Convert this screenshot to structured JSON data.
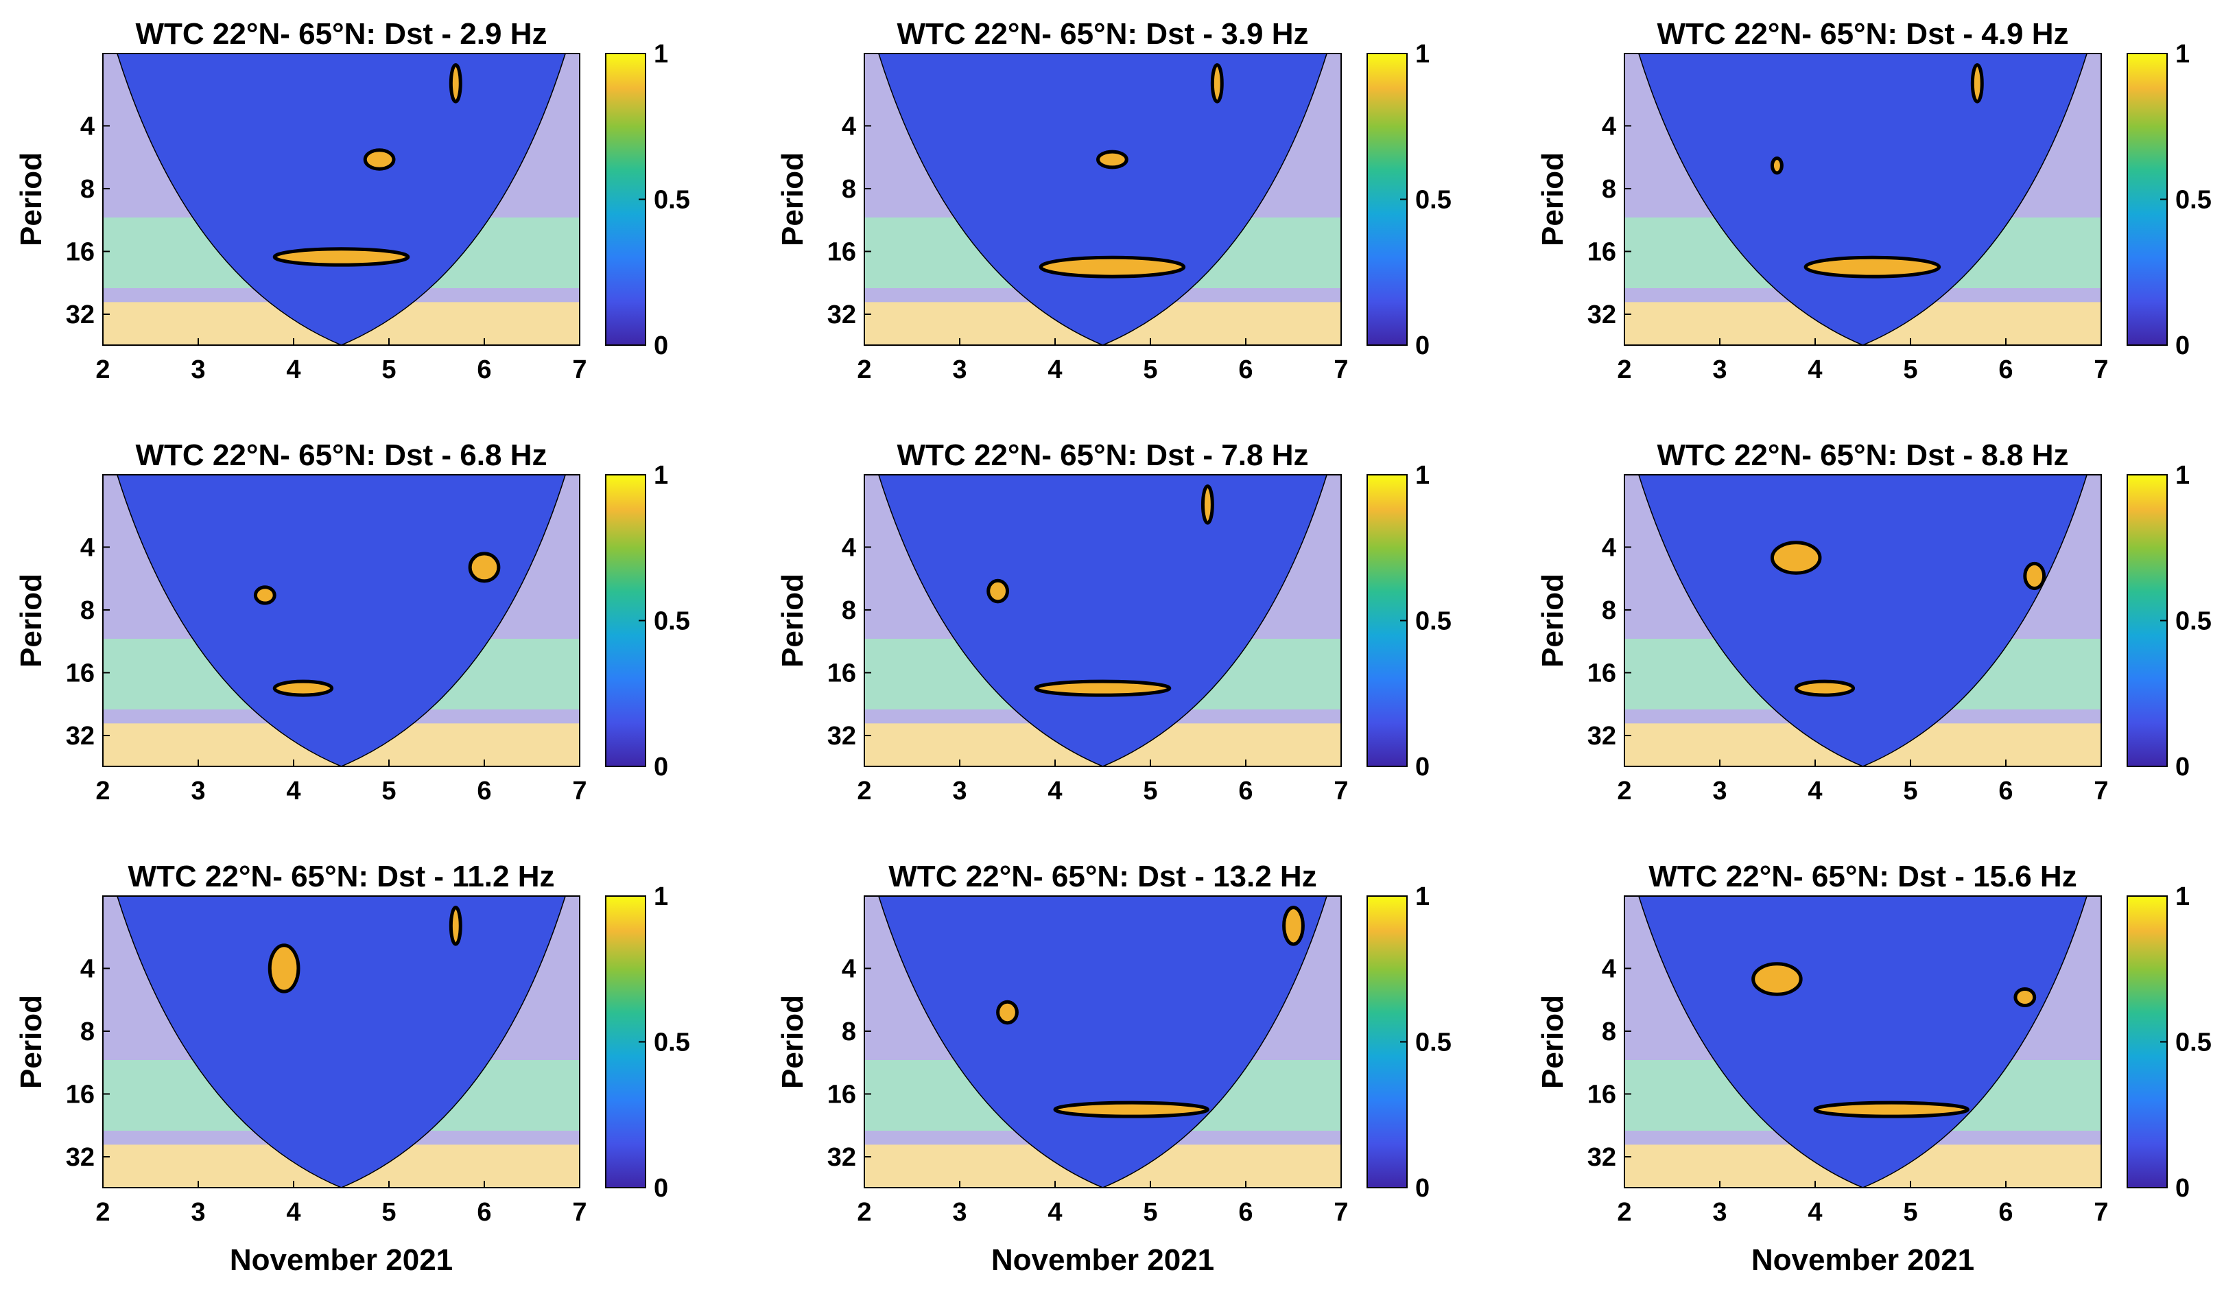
{
  "figure": {
    "panel_count": 9,
    "layout": "3x3"
  },
  "chart_data": [
    {
      "type": "heatmap",
      "title": "WTC 22°N- 65°N: Dst - 2.9 Hz",
      "xlabel": "",
      "ylabel": "Period",
      "xlim": [
        2,
        7
      ],
      "xticks": [
        "2",
        "3",
        "4",
        "5",
        "6",
        "7"
      ],
      "yticks": [
        "4",
        "8",
        "16",
        "32"
      ],
      "colorbar": {
        "ticks": [
          "0",
          "0.5",
          "1"
        ],
        "range": [
          0,
          1
        ]
      },
      "significant_regions": [
        {
          "day": 4.5,
          "period": 17,
          "day_span": 1.4,
          "period_span": 3
        },
        {
          "day": 4.9,
          "period": 5.8,
          "day_span": 0.3,
          "period_span": 1.2
        },
        {
          "day": 5.7,
          "period": 2.5,
          "day_span": 0.1,
          "period_span": 1
        }
      ]
    },
    {
      "type": "heatmap",
      "title": "WTC 22°N- 65°N: Dst - 3.9 Hz",
      "xlabel": "",
      "ylabel": "Period",
      "xlim": [
        2,
        7
      ],
      "xticks": [
        "2",
        "3",
        "4",
        "5",
        "6",
        "7"
      ],
      "yticks": [
        "4",
        "8",
        "16",
        "32"
      ],
      "colorbar": {
        "ticks": [
          "0",
          "0.5",
          "1"
        ],
        "range": [
          0,
          1
        ]
      },
      "significant_regions": [
        {
          "day": 4.6,
          "period": 19,
          "day_span": 1.5,
          "period_span": 4
        },
        {
          "day": 4.6,
          "period": 5.8,
          "day_span": 0.3,
          "period_span": 1
        },
        {
          "day": 5.7,
          "period": 2.5,
          "day_span": 0.1,
          "period_span": 1
        }
      ]
    },
    {
      "type": "heatmap",
      "title": "WTC 22°N- 65°N: Dst - 4.9 Hz",
      "xlabel": "",
      "ylabel": "Period",
      "xlim": [
        2,
        7
      ],
      "xticks": [
        "2",
        "3",
        "4",
        "5",
        "6",
        "7"
      ],
      "yticks": [
        "4",
        "8",
        "16",
        "32"
      ],
      "colorbar": {
        "ticks": [
          "0",
          "0.5",
          "1"
        ],
        "range": [
          0,
          1
        ]
      },
      "significant_regions": [
        {
          "day": 4.6,
          "period": 19,
          "day_span": 1.4,
          "period_span": 4
        },
        {
          "day": 3.6,
          "period": 6.2,
          "day_span": 0.1,
          "period_span": 1
        },
        {
          "day": 5.7,
          "period": 2.5,
          "day_span": 0.1,
          "period_span": 1
        }
      ]
    },
    {
      "type": "heatmap",
      "title": "WTC 22°N- 65°N: Dst - 6.8 Hz",
      "xlabel": "",
      "ylabel": "Period",
      "xlim": [
        2,
        7
      ],
      "xticks": [
        "2",
        "3",
        "4",
        "5",
        "6",
        "7"
      ],
      "yticks": [
        "4",
        "8",
        "16",
        "32"
      ],
      "colorbar": {
        "ticks": [
          "0",
          "0.5",
          "1"
        ],
        "range": [
          0,
          1
        ]
      },
      "significant_regions": [
        {
          "day": 4.1,
          "period": 19,
          "day_span": 0.6,
          "period_span": 2
        },
        {
          "day": 6,
          "period": 5,
          "day_span": 0.3,
          "period_span": 1.5
        },
        {
          "day": 3.7,
          "period": 6.8,
          "day_span": 0.2,
          "period_span": 1.2
        }
      ]
    },
    {
      "type": "heatmap",
      "title": "WTC 22°N- 65°N: Dst - 7.8 Hz",
      "xlabel": "",
      "ylabel": "Period",
      "xlim": [
        2,
        7
      ],
      "xticks": [
        "2",
        "3",
        "4",
        "5",
        "6",
        "7"
      ],
      "yticks": [
        "4",
        "8",
        "16",
        "32"
      ],
      "colorbar": {
        "ticks": [
          "0",
          "0.5",
          "1"
        ],
        "range": [
          0,
          1
        ]
      },
      "significant_regions": [
        {
          "day": 4.5,
          "period": 19,
          "day_span": 1.4,
          "period_span": 2
        },
        {
          "day": 3.4,
          "period": 6.5,
          "day_span": 0.2,
          "period_span": 1.5
        },
        {
          "day": 5.6,
          "period": 2.5,
          "day_span": 0.1,
          "period_span": 1
        }
      ]
    },
    {
      "type": "heatmap",
      "title": "WTC 22°N- 65°N: Dst - 8.8 Hz",
      "xlabel": "",
      "ylabel": "Period",
      "xlim": [
        2,
        7
      ],
      "xticks": [
        "2",
        "3",
        "4",
        "5",
        "6",
        "7"
      ],
      "yticks": [
        "4",
        "8",
        "16",
        "32"
      ],
      "colorbar": {
        "ticks": [
          "0",
          "0.5",
          "1"
        ],
        "range": [
          0,
          1
        ]
      },
      "significant_regions": [
        {
          "day": 4.1,
          "period": 19,
          "day_span": 0.6,
          "period_span": 2
        },
        {
          "day": 3.8,
          "period": 4.5,
          "day_span": 0.5,
          "period_span": 1.5
        },
        {
          "day": 6.3,
          "period": 5.5,
          "day_span": 0.2,
          "period_span": 1.5
        }
      ]
    },
    {
      "type": "heatmap",
      "title": "WTC 22°N- 65°N: Dst - 11.2 Hz",
      "xlabel": "November 2021",
      "ylabel": "Period",
      "xlim": [
        2,
        7
      ],
      "xticks": [
        "2",
        "3",
        "4",
        "5",
        "6",
        "7"
      ],
      "yticks": [
        "4",
        "8",
        "16",
        "32"
      ],
      "colorbar": {
        "ticks": [
          "0",
          "0.5",
          "1"
        ],
        "range": [
          0,
          1
        ]
      },
      "significant_regions": [
        {
          "day": 3.9,
          "period": 4,
          "day_span": 0.3,
          "period_span": 2
        },
        {
          "day": 5.7,
          "period": 2.5,
          "day_span": 0.1,
          "period_span": 1
        }
      ]
    },
    {
      "type": "heatmap",
      "title": "WTC 22°N- 65°N: Dst - 13.2 Hz",
      "xlabel": "November 2021",
      "ylabel": "Period",
      "xlim": [
        2,
        7
      ],
      "xticks": [
        "2",
        "3",
        "4",
        "5",
        "6",
        "7"
      ],
      "yticks": [
        "4",
        "8",
        "16",
        "32"
      ],
      "colorbar": {
        "ticks": [
          "0",
          "0.5",
          "1"
        ],
        "range": [
          0,
          1
        ]
      },
      "significant_regions": [
        {
          "day": 4.8,
          "period": 19,
          "day_span": 1.6,
          "period_span": 2
        },
        {
          "day": 3.5,
          "period": 6.5,
          "day_span": 0.2,
          "period_span": 1.5
        },
        {
          "day": 6.5,
          "period": 2.5,
          "day_span": 0.2,
          "period_span": 1
        }
      ]
    },
    {
      "type": "heatmap",
      "title": "WTC 22°N- 65°N: Dst - 15.6 Hz",
      "xlabel": "November 2021",
      "ylabel": "Period",
      "xlim": [
        2,
        7
      ],
      "xticks": [
        "2",
        "3",
        "4",
        "5",
        "6",
        "7"
      ],
      "yticks": [
        "4",
        "8",
        "16",
        "32"
      ],
      "colorbar": {
        "ticks": [
          "0",
          "0.5",
          "1"
        ],
        "range": [
          0,
          1
        ]
      },
      "significant_regions": [
        {
          "day": 4.8,
          "period": 19,
          "day_span": 1.6,
          "period_span": 2
        },
        {
          "day": 3.6,
          "period": 4.5,
          "day_span": 0.5,
          "period_span": 1.5
        },
        {
          "day": 6.2,
          "period": 5.5,
          "day_span": 0.2,
          "period_span": 1
        }
      ]
    }
  ]
}
